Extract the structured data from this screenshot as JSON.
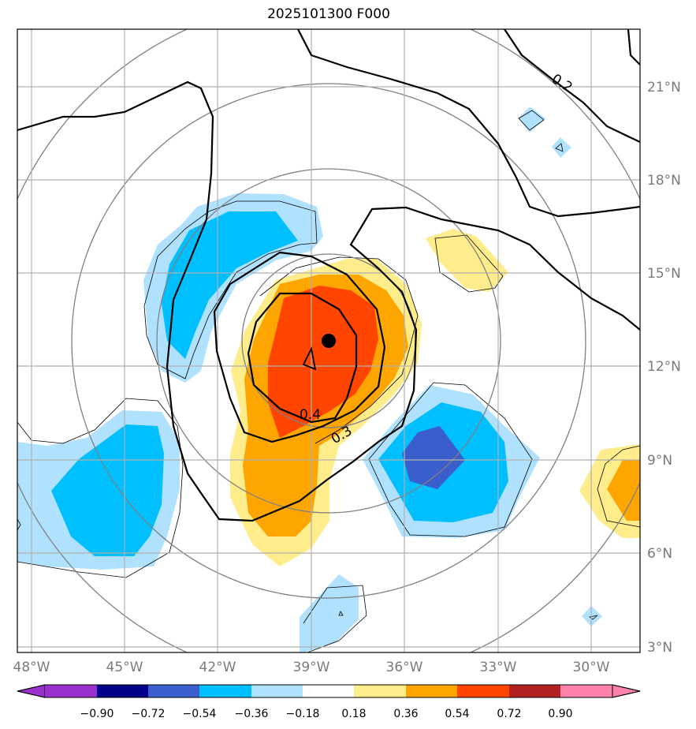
{
  "title": "2025101300 F000",
  "map": {
    "lon_ticks": [
      "48°W",
      "45°W",
      "42°W",
      "39°W",
      "36°W",
      "33°W",
      "30°W"
    ],
    "lat_ticks": [
      "21°N",
      "18°N",
      "15°N",
      "12°N",
      "9°N",
      "6°N",
      "3°N"
    ],
    "contour_labels": [
      "0.2",
      "0.4",
      "0.3"
    ],
    "center_marker": "storm-center"
  },
  "colorbar": {
    "labels": [
      "−0.90",
      "−0.72",
      "−0.54",
      "−0.36",
      "−0.18",
      "0.18",
      "0.36",
      "0.54",
      "0.72",
      "0.90"
    ],
    "colors": [
      "#9932cc",
      "#00008b",
      "#3a5fcd",
      "#00bfff",
      "#b0e2ff",
      "#ffffff",
      "#ffec8b",
      "#ffa500",
      "#ff4500",
      "#b22222",
      "#ff82ab"
    ]
  }
}
